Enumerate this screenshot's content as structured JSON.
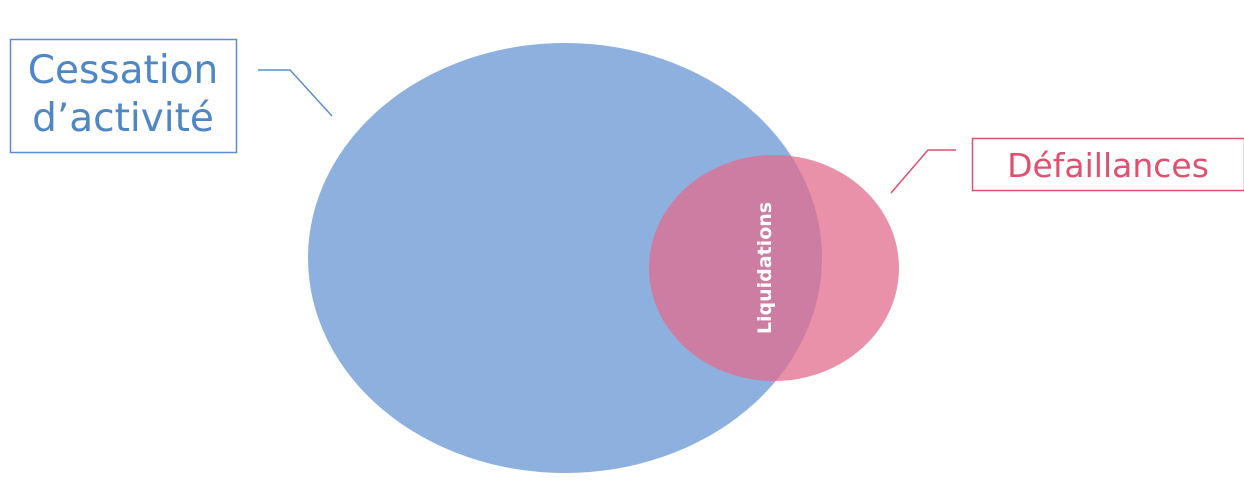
{
  "sets": [
    {
      "label_lines": [
        "Cessation",
        "d’activité"
      ]
    },
    {
      "label": "Défaillances"
    }
  ],
  "intersection": {
    "label": "Liquidations"
  }
}
